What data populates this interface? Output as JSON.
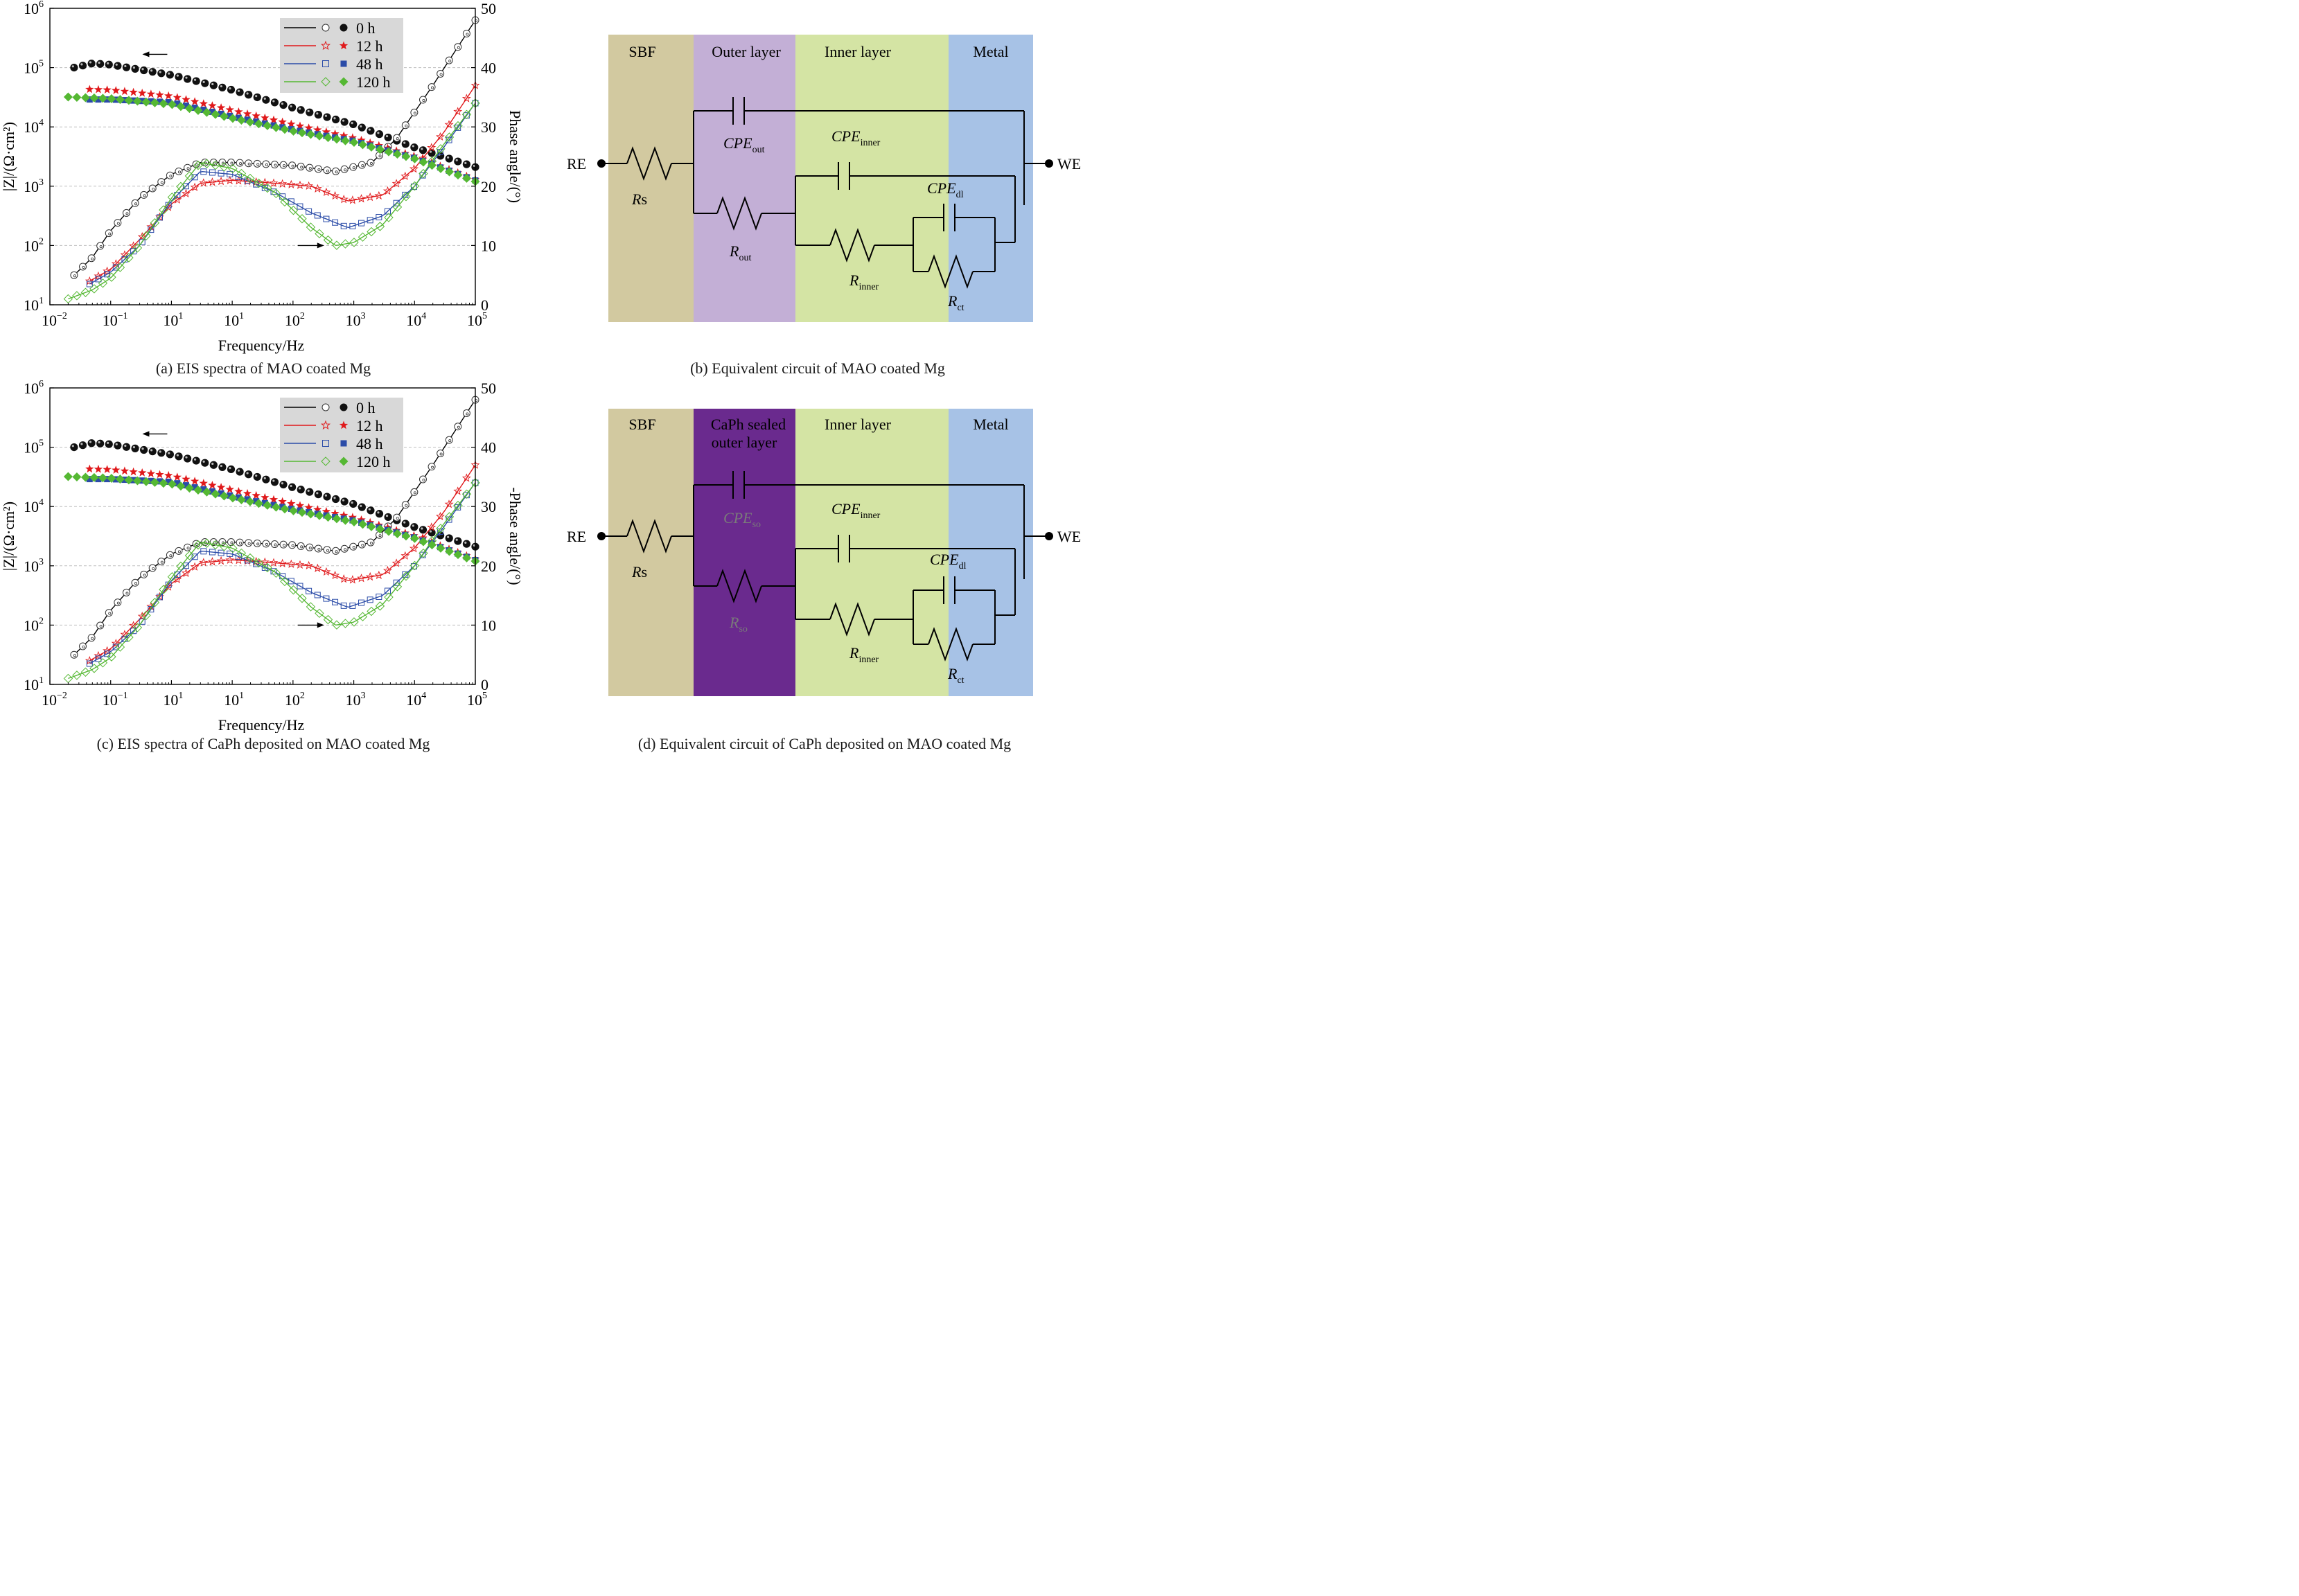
{
  "chart_data": [
    {
      "id": "a",
      "type": "scatter",
      "caption": "(a) EIS spectra of MAO coated Mg",
      "xlabel": "Frequency/Hz",
      "ylabel_left": "|Z|/(Ω·cm²)",
      "ylabel_right": "Phase angle/(°)",
      "x_scale": "log",
      "xlim": [
        0.01,
        100000
      ],
      "x_tick_exponents": [
        "−2",
        "−1",
        "1",
        "1",
        "2",
        "3",
        "4",
        "5"
      ],
      "y_left_scale": "log",
      "ylim_left": [
        10,
        1000000
      ],
      "y_left_tick_exponents": [
        "1",
        "2",
        "3",
        "4",
        "5",
        "6"
      ],
      "ylim_right": [
        0,
        50
      ],
      "y_right_ticks": [
        "0",
        "10",
        "20",
        "30",
        "40",
        "50"
      ],
      "grid": "dashed-horizontal",
      "legend_position": "top-right",
      "series": [
        {
          "name": "0 h",
          "color": "#000000",
          "z_start": [
            0.025,
            100000
          ],
          "z_anchors": [
            [
              0.025,
              100000
            ],
            [
              0.05,
              118000
            ],
            [
              0.1,
              112000
            ],
            [
              1,
              75000
            ],
            [
              10,
              42000
            ],
            [
              100,
              21000
            ],
            [
              1000,
              11000
            ],
            [
              10000,
              4500
            ],
            [
              100000,
              2100
            ]
          ],
          "phase_anchors": [
            [
              0.025,
              5
            ],
            [
              0.05,
              8
            ],
            [
              0.1,
              12.5
            ],
            [
              0.3,
              18
            ],
            [
              1,
              22
            ],
            [
              3,
              24
            ],
            [
              10,
              24
            ],
            [
              100,
              23.5
            ],
            [
              500,
              22.5
            ],
            [
              2000,
              24
            ],
            [
              5000,
              28
            ],
            [
              20000,
              37
            ],
            [
              100000,
              48
            ]
          ]
        },
        {
          "name": "12 h",
          "color": "#e0191b",
          "z_start": [
            0.045,
            43000
          ],
          "z_anchors": [
            [
              0.045,
              43000
            ],
            [
              0.1,
              42000
            ],
            [
              1,
              33000
            ],
            [
              10,
              19000
            ],
            [
              100,
              11000
            ],
            [
              1000,
              6500
            ],
            [
              10000,
              3200
            ],
            [
              100000,
              1300
            ]
          ],
          "phase_anchors": [
            [
              0.045,
              4
            ],
            [
              0.1,
              6
            ],
            [
              0.3,
              11
            ],
            [
              1,
              17
            ],
            [
              3,
              20.5
            ],
            [
              10,
              21
            ],
            [
              50,
              20.5
            ],
            [
              200,
              20
            ],
            [
              800,
              17.5
            ],
            [
              3000,
              18.5
            ],
            [
              10000,
              23
            ],
            [
              30000,
              29
            ],
            [
              100000,
              37
            ]
          ]
        },
        {
          "name": "48 h",
          "color": "#2b4ca8",
          "z_start": [
            0.045,
            29000
          ],
          "z_anchors": [
            [
              0.045,
              29000
            ],
            [
              0.1,
              29000
            ],
            [
              1,
              26000
            ],
            [
              10,
              15000
            ],
            [
              100,
              9000
            ],
            [
              1000,
              5800
            ],
            [
              10000,
              3000
            ],
            [
              100000,
              1250
            ]
          ],
          "phase_anchors": [
            [
              0.045,
              3.5
            ],
            [
              0.1,
              5.5
            ],
            [
              0.3,
              10
            ],
            [
              1,
              17.5
            ],
            [
              3,
              22.5
            ],
            [
              10,
              22
            ],
            [
              50,
              19
            ],
            [
              200,
              15.5
            ],
            [
              800,
              13
            ],
            [
              3000,
              15
            ],
            [
              10000,
              20
            ],
            [
              30000,
              26.5
            ],
            [
              100000,
              34
            ]
          ]
        },
        {
          "name": "120 h",
          "color": "#55b833",
          "z_start": [
            0.02,
            32000
          ],
          "z_anchors": [
            [
              0.02,
              32000
            ],
            [
              0.1,
              30000
            ],
            [
              1,
              24000
            ],
            [
              10,
              14000
            ],
            [
              100,
              8500
            ],
            [
              1000,
              5500
            ],
            [
              10000,
              2900
            ],
            [
              100000,
              1200
            ]
          ],
          "phase_anchors": [
            [
              0.02,
              1
            ],
            [
              0.05,
              2.5
            ],
            [
              0.1,
              4.5
            ],
            [
              0.3,
              10
            ],
            [
              1,
              18
            ],
            [
              3,
              24
            ],
            [
              10,
              23
            ],
            [
              50,
              19
            ],
            [
              200,
              13
            ],
            [
              500,
              10
            ],
            [
              1000,
              10.5
            ],
            [
              3000,
              13.5
            ],
            [
              10000,
              20
            ],
            [
              30000,
              27
            ],
            [
              100000,
              34
            ]
          ]
        }
      ],
      "annotations": {
        "left_arrow_near": "0.1 Hz",
        "right_arrow_near": "500 Hz"
      }
    },
    {
      "id": "c",
      "type": "scatter",
      "caption": "(c) EIS spectra of CaPh deposited on MAO coated Mg",
      "xlabel": "Frequency/Hz",
      "ylabel_left": "|Z|/(Ω·cm²)",
      "ylabel_right": "-Phase angle/(°)",
      "x_scale": "log",
      "xlim": [
        0.01,
        100000
      ],
      "x_tick_exponents": [
        "−2",
        "−1",
        "1",
        "1",
        "2",
        "3",
        "4",
        "5"
      ],
      "y_left_scale": "log",
      "ylim_left": [
        10,
        1000000
      ],
      "y_left_tick_exponents": [
        "1",
        "2",
        "3",
        "4",
        "5",
        "6"
      ],
      "ylim_right": [
        0,
        50
      ],
      "y_right_ticks": [
        "0",
        "10",
        "20",
        "30",
        "40",
        "50"
      ],
      "grid": "dashed-horizontal",
      "legend_position": "top-right",
      "series": [
        {
          "name": "0 h",
          "color": "#000000",
          "z_anchors": [
            [
              0.025,
              100000
            ],
            [
              0.05,
              118000
            ],
            [
              0.1,
              112000
            ],
            [
              1,
              75000
            ],
            [
              10,
              42000
            ],
            [
              100,
              21000
            ],
            [
              1000,
              11000
            ],
            [
              10000,
              4500
            ],
            [
              100000,
              2100
            ]
          ],
          "phase_anchors": [
            [
              0.025,
              5
            ],
            [
              0.05,
              8
            ],
            [
              0.1,
              12.5
            ],
            [
              0.3,
              18
            ],
            [
              1,
              22
            ],
            [
              3,
              24
            ],
            [
              10,
              24
            ],
            [
              100,
              23.5
            ],
            [
              500,
              22.5
            ],
            [
              2000,
              24
            ],
            [
              5000,
              28
            ],
            [
              20000,
              37
            ],
            [
              100000,
              48
            ]
          ]
        },
        {
          "name": "12 h",
          "color": "#e0191b",
          "z_anchors": [
            [
              0.045,
              43000
            ],
            [
              0.1,
              42000
            ],
            [
              1,
              33000
            ],
            [
              10,
              19000
            ],
            [
              100,
              11000
            ],
            [
              1000,
              6500
            ],
            [
              10000,
              3200
            ],
            [
              100000,
              1300
            ]
          ],
          "phase_anchors": [
            [
              0.045,
              4
            ],
            [
              0.1,
              6
            ],
            [
              0.3,
              11
            ],
            [
              1,
              17
            ],
            [
              3,
              20.5
            ],
            [
              10,
              21
            ],
            [
              50,
              20.5
            ],
            [
              200,
              20
            ],
            [
              800,
              17.5
            ],
            [
              3000,
              18.5
            ],
            [
              10000,
              23
            ],
            [
              30000,
              29
            ],
            [
              100000,
              37
            ]
          ]
        },
        {
          "name": "48 h",
          "color": "#2b4ca8",
          "z_anchors": [
            [
              0.045,
              29000
            ],
            [
              0.1,
              29000
            ],
            [
              1,
              26000
            ],
            [
              10,
              15000
            ],
            [
              100,
              9000
            ],
            [
              1000,
              5800
            ],
            [
              10000,
              3000
            ],
            [
              100000,
              1250
            ]
          ],
          "phase_anchors": [
            [
              0.045,
              3.5
            ],
            [
              0.1,
              5.5
            ],
            [
              0.3,
              10
            ],
            [
              1,
              17.5
            ],
            [
              3,
              22.5
            ],
            [
              10,
              22
            ],
            [
              50,
              19
            ],
            [
              200,
              15.5
            ],
            [
              800,
              13
            ],
            [
              3000,
              15
            ],
            [
              10000,
              20
            ],
            [
              30000,
              26.5
            ],
            [
              100000,
              34
            ]
          ]
        },
        {
          "name": "120 h",
          "color": "#55b833",
          "z_anchors": [
            [
              0.02,
              32000
            ],
            [
              0.1,
              30000
            ],
            [
              1,
              24000
            ],
            [
              10,
              14000
            ],
            [
              100,
              8500
            ],
            [
              1000,
              5500
            ],
            [
              10000,
              2900
            ],
            [
              100000,
              1200
            ]
          ],
          "phase_anchors": [
            [
              0.02,
              1
            ],
            [
              0.05,
              2.5
            ],
            [
              0.1,
              4.5
            ],
            [
              0.3,
              10
            ],
            [
              1,
              18
            ],
            [
              3,
              24
            ],
            [
              10,
              23
            ],
            [
              50,
              19
            ],
            [
              200,
              13
            ],
            [
              500,
              10
            ],
            [
              1000,
              10.5
            ],
            [
              3000,
              13.5
            ],
            [
              10000,
              20
            ],
            [
              30000,
              27
            ],
            [
              100000,
              34
            ]
          ]
        }
      ]
    }
  ],
  "circuit_b": {
    "caption": "(b) Equivalent circuit of MAO coated Mg",
    "zones": [
      "SBF",
      "Outer layer",
      "Inner layer",
      "Metal"
    ],
    "zone_colors": [
      "#d2c9a0",
      "#c3afd6",
      "#d4e4a4",
      "#a7c2e6"
    ],
    "re": "RE",
    "we": "WE",
    "rs": {
      "main": "R",
      "rest": "s"
    },
    "cpe_out": {
      "main": "CPE",
      "sub": "out"
    },
    "cpe_inner": {
      "main": "CPE",
      "sub": "inner"
    },
    "cpe_dl": {
      "main": "CPE",
      "sub": "dl"
    },
    "r_out": {
      "main": "R",
      "sub": "out"
    },
    "r_inner": {
      "main": "R",
      "sub": "inner"
    },
    "r_ct": {
      "main": "R",
      "sub": "ct"
    }
  },
  "circuit_d": {
    "caption": "(d) Equivalent circuit of CaPh deposited on MAO coated Mg",
    "zones": [
      "SBF",
      "CaPh sealed",
      "outer layer",
      "Inner layer",
      "Metal"
    ],
    "zone_colors": [
      "#d2c9a0",
      "#6a2a8e",
      "#d4e4a4",
      "#a7c2e6"
    ],
    "re": "RE",
    "we": "WE",
    "rs": {
      "main": "R",
      "rest": "s"
    },
    "cpe_so": {
      "main": "CPE",
      "sub": "so"
    },
    "cpe_inner": {
      "main": "CPE",
      "sub": "inner"
    },
    "cpe_dl": {
      "main": "CPE",
      "sub": "dl"
    },
    "r_so": {
      "main": "R",
      "sub": "so"
    },
    "r_inner": {
      "main": "R",
      "sub": "inner"
    },
    "r_ct": {
      "main": "R",
      "sub": "ct"
    }
  }
}
